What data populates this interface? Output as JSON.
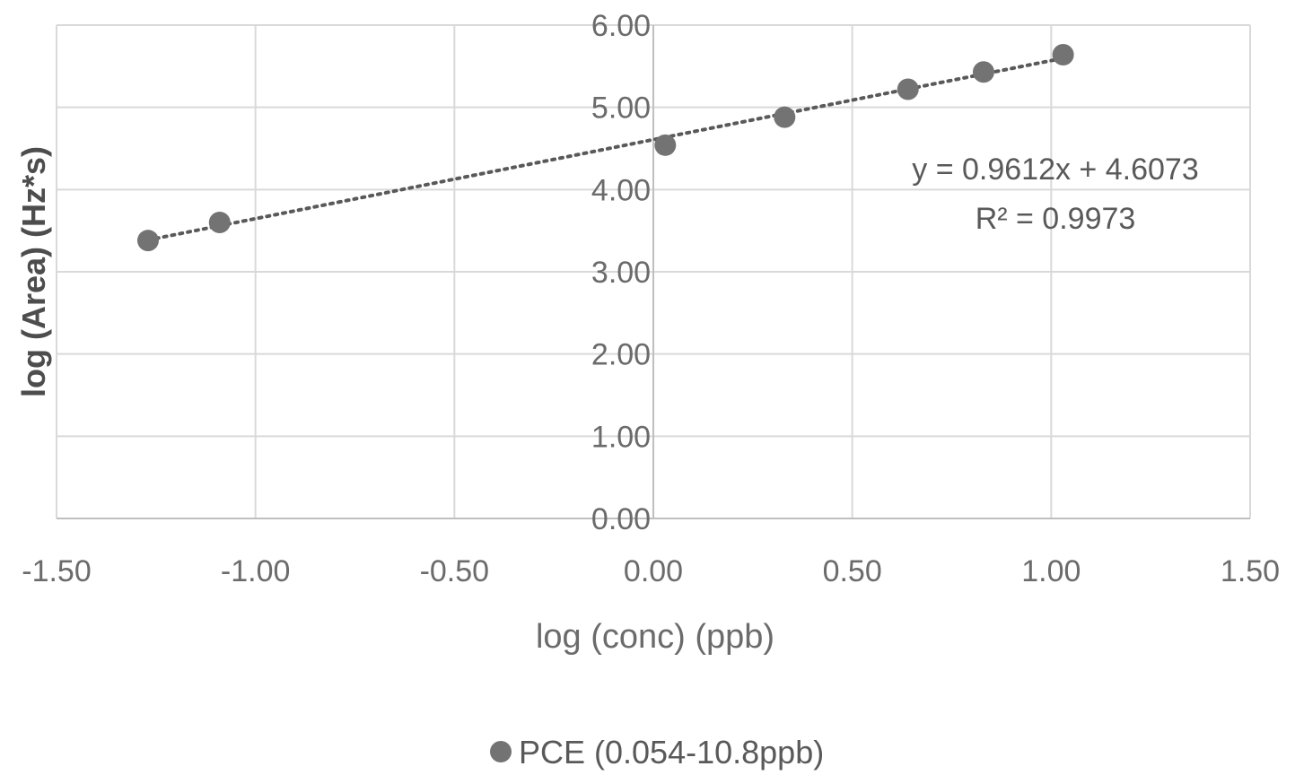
{
  "chart_data": {
    "type": "scatter",
    "xlabel": "log (conc) (ppb)",
    "ylabel": "log (Area)  (Hz*s)",
    "xlim": [
      -1.5,
      1.5
    ],
    "ylim": [
      0,
      6
    ],
    "x_tick_labels": [
      "-1.50",
      "-1.00",
      "-0.50",
      "0.00",
      "0.50",
      "1.00",
      "1.50"
    ],
    "y_tick_labels": [
      "0.00",
      "1.00",
      "2.00",
      "3.00",
      "4.00",
      "5.00",
      "6.00"
    ],
    "grid": true,
    "legend_position": "bottom",
    "series": [
      {
        "name": "PCE (0.054-10.8ppb)",
        "color": "#737373",
        "points": [
          {
            "x": -1.27,
            "y": 3.38
          },
          {
            "x": -1.09,
            "y": 3.6
          },
          {
            "x": 0.03,
            "y": 4.54
          },
          {
            "x": 0.33,
            "y": 4.88
          },
          {
            "x": 0.64,
            "y": 5.22
          },
          {
            "x": 0.83,
            "y": 5.43
          },
          {
            "x": 1.03,
            "y": 5.64
          }
        ],
        "trendline": {
          "type": "linear",
          "slope": 0.9612,
          "intercept": 4.6073,
          "x_range": [
            -1.27,
            1.03
          ],
          "style": "dotted"
        }
      }
    ],
    "annotations": {
      "equation": "y = 0.9612x + 4.6073",
      "r_squared": "R² = 0.9973"
    }
  }
}
